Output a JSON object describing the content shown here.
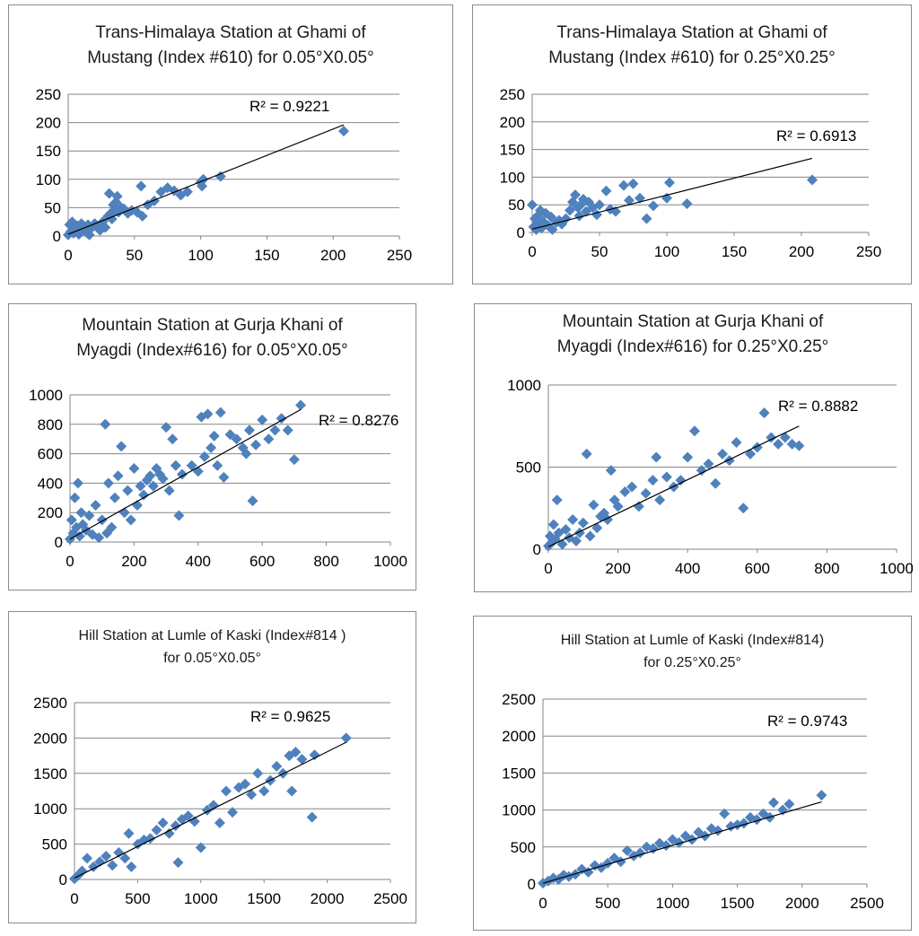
{
  "chart_data": [
    {
      "type": "scatter",
      "title_lines": [
        "Trans-Himalaya Station at Ghami of",
        "Mustang (Index #610) for  0.05°X0.05°"
      ],
      "xlim": [
        0,
        250
      ],
      "ylim": [
        0,
        250
      ],
      "xticks": [
        0,
        50,
        100,
        150,
        200,
        250
      ],
      "yticks": [
        0,
        50,
        100,
        150,
        200,
        250
      ],
      "r2_label": "R² = 0.9221",
      "trendline": {
        "x": [
          0,
          208
        ],
        "y": [
          3,
          196
        ]
      },
      "x": [
        0,
        1,
        2,
        3,
        4,
        5,
        6,
        7,
        8,
        10,
        12,
        14,
        15,
        16,
        18,
        20,
        22,
        24,
        26,
        28,
        30,
        31,
        32,
        33,
        34,
        35,
        36,
        37,
        38,
        40,
        42,
        45,
        48,
        52,
        55,
        56,
        60,
        65,
        70,
        75,
        80,
        85,
        90,
        100,
        101,
        102,
        115,
        208
      ],
      "y": [
        2,
        20,
        8,
        25,
        5,
        15,
        10,
        18,
        3,
        22,
        12,
        6,
        20,
        2,
        15,
        22,
        18,
        10,
        25,
        15,
        35,
        75,
        40,
        30,
        55,
        45,
        60,
        70,
        42,
        50,
        48,
        40,
        45,
        42,
        88,
        35,
        55,
        62,
        78,
        85,
        80,
        72,
        78,
        95,
        88,
        100,
        105,
        185
      ]
    },
    {
      "type": "scatter",
      "title_lines": [
        "Trans-Himalaya Station at Ghami of",
        "Mustang (Index #610) for 0.25°X0.25°"
      ],
      "xlim": [
        0,
        250
      ],
      "ylim": [
        0,
        250
      ],
      "xticks": [
        0,
        50,
        100,
        150,
        200,
        250
      ],
      "yticks": [
        0,
        50,
        100,
        150,
        200,
        250
      ],
      "r2_label": "R² = 0.6913",
      "trendline": {
        "x": [
          0,
          208
        ],
        "y": [
          6,
          134
        ]
      },
      "x": [
        0,
        1,
        2,
        3,
        4,
        5,
        6,
        7,
        8,
        10,
        12,
        14,
        15,
        18,
        20,
        22,
        25,
        28,
        30,
        32,
        34,
        35,
        36,
        38,
        40,
        42,
        45,
        48,
        50,
        55,
        58,
        62,
        68,
        72,
        75,
        80,
        85,
        90,
        100,
        102,
        115,
        208
      ],
      "y": [
        50,
        10,
        25,
        5,
        30,
        15,
        40,
        8,
        20,
        35,
        12,
        28,
        5,
        18,
        22,
        15,
        25,
        40,
        55,
        68,
        45,
        30,
        50,
        60,
        38,
        55,
        45,
        32,
        50,
        75,
        42,
        38,
        85,
        58,
        88,
        62,
        25,
        48,
        62,
        90,
        52,
        95
      ]
    },
    {
      "type": "scatter",
      "title_lines": [
        "Mountain Station at Gurja Khani of",
        "Myagdi (Index#616) for 0.05°X0.05°"
      ],
      "xlim": [
        0,
        1000
      ],
      "ylim": [
        0,
        1000
      ],
      "xticks": [
        0,
        200,
        400,
        600,
        800,
        1000
      ],
      "yticks": [
        0,
        200,
        400,
        600,
        800,
        1000
      ],
      "r2_label": "R² = 0.8276",
      "trendline": {
        "x": [
          0,
          720
        ],
        "y": [
          20,
          900
        ]
      },
      "x": [
        0,
        5,
        10,
        15,
        20,
        25,
        30,
        35,
        40,
        50,
        60,
        70,
        80,
        90,
        100,
        110,
        115,
        120,
        130,
        140,
        150,
        160,
        170,
        180,
        190,
        200,
        210,
        220,
        230,
        240,
        250,
        260,
        270,
        280,
        290,
        300,
        310,
        320,
        330,
        340,
        350,
        380,
        400,
        410,
        420,
        430,
        440,
        450,
        460,
        470,
        480,
        500,
        520,
        540,
        550,
        560,
        570,
        580,
        600,
        620,
        640,
        660,
        680,
        700,
        720
      ],
      "y": [
        20,
        150,
        60,
        300,
        100,
        400,
        40,
        200,
        120,
        80,
        180,
        50,
        250,
        30,
        150,
        800,
        60,
        400,
        100,
        300,
        450,
        650,
        200,
        350,
        150,
        500,
        250,
        380,
        320,
        420,
        450,
        380,
        500,
        460,
        430,
        780,
        350,
        700,
        520,
        180,
        460,
        520,
        480,
        850,
        580,
        870,
        640,
        720,
        520,
        880,
        440,
        730,
        700,
        640,
        600,
        760,
        280,
        660,
        830,
        700,
        760,
        840,
        760,
        560,
        930
      ]
    },
    {
      "type": "scatter",
      "title_lines": [
        "Mountain Station at Gurja Khani of",
        "Myagdi (Index#616) for 0.25°X0.25°"
      ],
      "xlim": [
        0,
        1000
      ],
      "ylim": [
        0,
        1000
      ],
      "xticks": [
        0,
        200,
        400,
        600,
        800,
        1000
      ],
      "yticks": [
        0,
        500,
        1000
      ],
      "r2_label": "R² = 0.8882",
      "trendline": {
        "x": [
          0,
          720
        ],
        "y": [
          15,
          750
        ]
      },
      "x": [
        0,
        5,
        10,
        15,
        20,
        25,
        30,
        40,
        50,
        60,
        70,
        80,
        90,
        100,
        110,
        120,
        130,
        140,
        150,
        160,
        170,
        180,
        190,
        200,
        220,
        240,
        260,
        280,
        300,
        310,
        320,
        340,
        360,
        380,
        400,
        420,
        440,
        460,
        480,
        500,
        520,
        540,
        560,
        580,
        600,
        620,
        640,
        660,
        680,
        700,
        720
      ],
      "y": [
        20,
        80,
        40,
        150,
        60,
        300,
        100,
        30,
        120,
        70,
        180,
        50,
        100,
        160,
        580,
        80,
        270,
        130,
        200,
        220,
        180,
        480,
        300,
        260,
        350,
        380,
        260,
        340,
        420,
        560,
        300,
        440,
        380,
        420,
        560,
        720,
        480,
        520,
        400,
        580,
        540,
        650,
        250,
        580,
        620,
        830,
        680,
        640,
        680,
        640,
        630
      ]
    },
    {
      "type": "scatter",
      "title_lines": [
        "Hill Station at Lumle of Kaski (Index#814 )",
        "for 0.05°X0.05°"
      ],
      "xlim": [
        0,
        2500
      ],
      "ylim": [
        0,
        2500
      ],
      "xticks": [
        0,
        500,
        1000,
        1500,
        2000,
        2500
      ],
      "yticks": [
        0,
        500,
        1000,
        1500,
        2000,
        2500
      ],
      "r2_label": "R² = 0.9625",
      "trendline": {
        "x": [
          0,
          2150
        ],
        "y": [
          20,
          1940
        ]
      },
      "x": [
        0,
        30,
        60,
        100,
        150,
        200,
        250,
        300,
        350,
        400,
        430,
        450,
        500,
        550,
        600,
        650,
        700,
        750,
        800,
        820,
        850,
        900,
        950,
        1000,
        1050,
        1100,
        1150,
        1200,
        1250,
        1300,
        1350,
        1400,
        1450,
        1500,
        1550,
        1600,
        1650,
        1700,
        1720,
        1750,
        1800,
        1880,
        1900,
        2150
      ],
      "y": [
        10,
        60,
        120,
        300,
        180,
        250,
        330,
        200,
        380,
        300,
        650,
        180,
        500,
        560,
        580,
        700,
        800,
        650,
        760,
        240,
        850,
        900,
        820,
        450,
        980,
        1050,
        800,
        1250,
        950,
        1300,
        1350,
        1200,
        1500,
        1250,
        1400,
        1600,
        1500,
        1750,
        1250,
        1800,
        1700,
        880,
        1760,
        2000
      ]
    },
    {
      "type": "scatter",
      "title_lines": [
        "Hill Station at Lumle of Kaski (Index#814)",
        "for 0.25°X0.25°"
      ],
      "xlim": [
        0,
        2500
      ],
      "ylim": [
        0,
        2500
      ],
      "xticks": [
        0,
        500,
        1000,
        1500,
        2000,
        2500
      ],
      "yticks": [
        0,
        500,
        1000,
        1500,
        2000,
        2500
      ],
      "r2_label": "R² = 0.9743",
      "trendline": {
        "x": [
          0,
          2150
        ],
        "y": [
          10,
          1110
        ]
      },
      "x": [
        0,
        40,
        80,
        120,
        160,
        200,
        250,
        300,
        350,
        400,
        450,
        500,
        550,
        600,
        650,
        700,
        750,
        800,
        850,
        900,
        950,
        1000,
        1050,
        1100,
        1150,
        1200,
        1250,
        1300,
        1350,
        1400,
        1450,
        1500,
        1550,
        1600,
        1650,
        1700,
        1750,
        1780,
        1850,
        1900,
        2150
      ],
      "y": [
        10,
        40,
        80,
        60,
        120,
        100,
        130,
        200,
        160,
        250,
        220,
        280,
        350,
        300,
        450,
        380,
        420,
        500,
        480,
        550,
        520,
        600,
        560,
        650,
        600,
        700,
        650,
        750,
        720,
        950,
        780,
        800,
        820,
        900,
        870,
        950,
        900,
        1100,
        1000,
        1080,
        1200
      ]
    }
  ],
  "colors": {
    "marker": "#4f81bd",
    "trendline": "#000000",
    "grid": "#868686",
    "axis": "#868686"
  }
}
